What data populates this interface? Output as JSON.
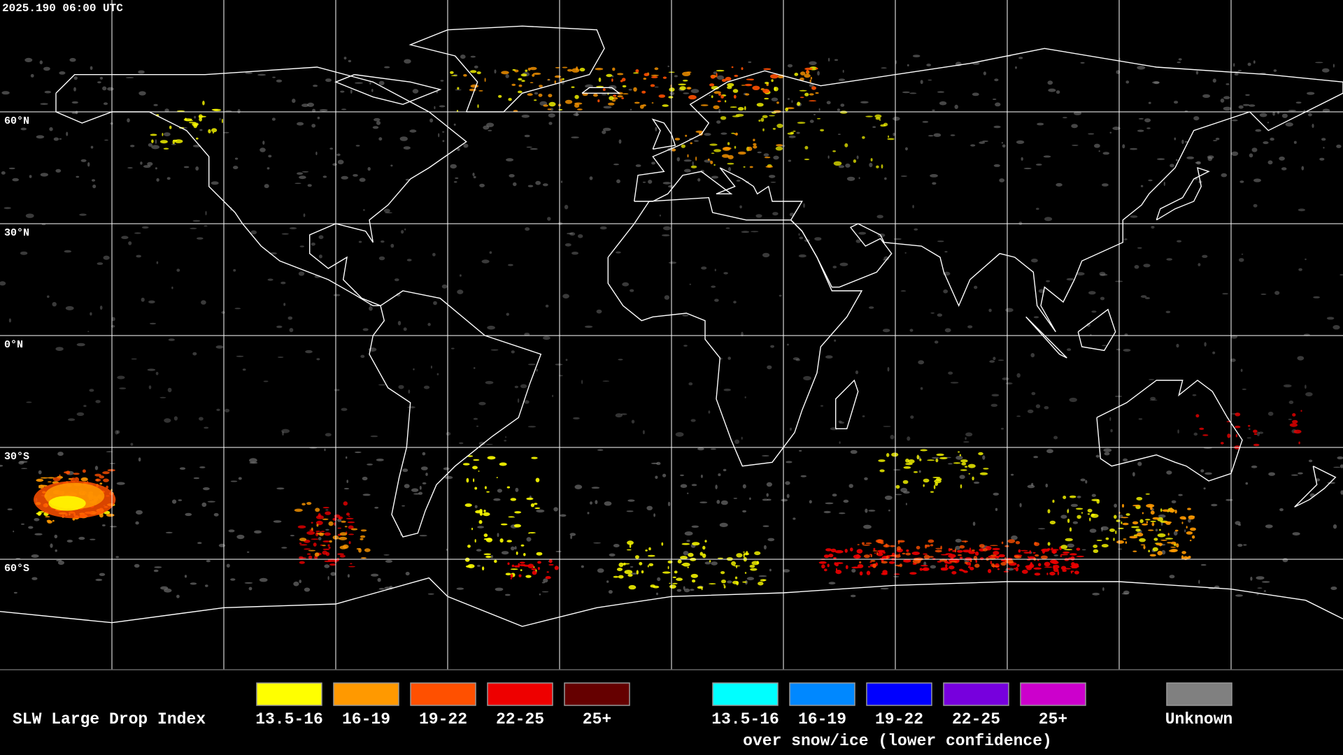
{
  "header": {
    "timestamp": "2025.190 06:00 UTC"
  },
  "map": {
    "latitude_labels": [
      "60°N",
      "30°N",
      "0°N",
      "30°S",
      "60°S"
    ]
  },
  "legend": {
    "title": "SLW Large Drop Index",
    "groups": [
      {
        "items": [
          {
            "label": "13.5-16",
            "color": "#ffff00"
          },
          {
            "label": "16-19",
            "color": "#ff9900"
          },
          {
            "label": "19-22",
            "color": "#ff5000"
          },
          {
            "label": "22-25",
            "color": "#ee0000"
          },
          {
            "label": "25+",
            "color": "#650000"
          }
        ]
      },
      {
        "items": [
          {
            "label": "13.5-16",
            "color": "#00ffff"
          },
          {
            "label": "16-19",
            "color": "#0088ff"
          },
          {
            "label": "19-22",
            "color": "#0000ff"
          },
          {
            "label": "22-25",
            "color": "#7700dd"
          },
          {
            "label": "25+",
            "color": "#cc00cc"
          }
        ],
        "note": "over snow/ice (lower confidence)"
      }
    ],
    "unknown": {
      "label": "Unknown",
      "color": "#808080"
    }
  }
}
